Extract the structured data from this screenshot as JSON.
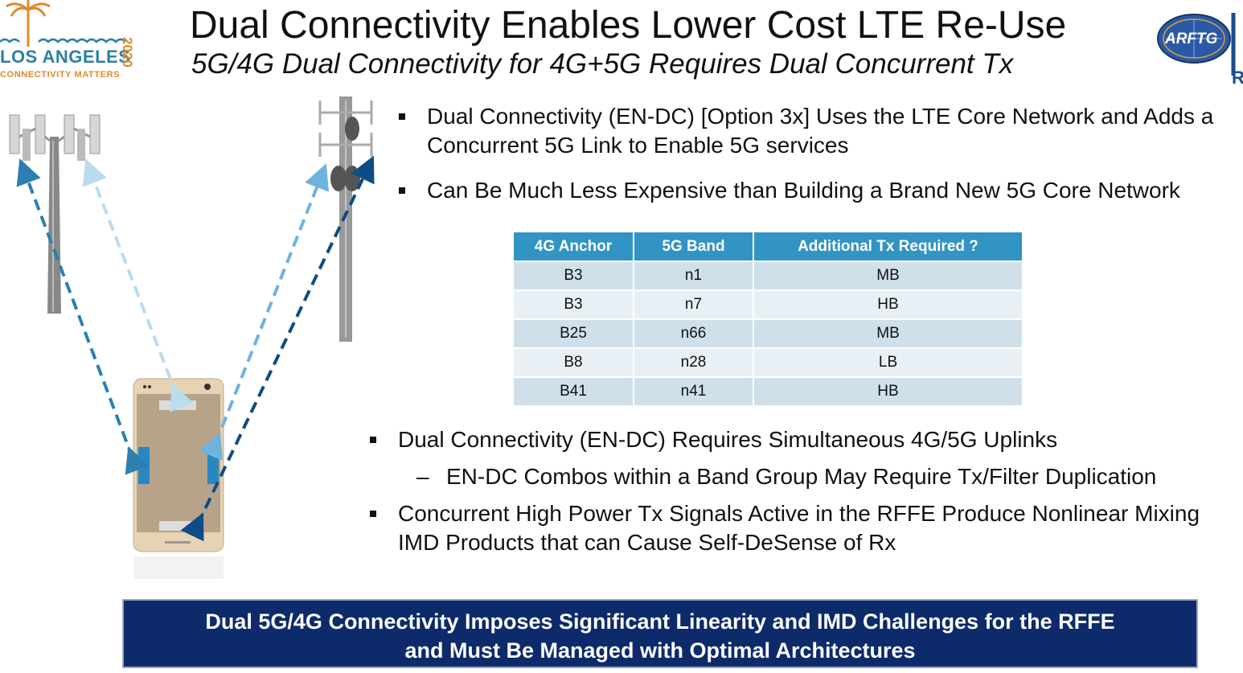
{
  "logo": {
    "name": "LOS ANGELES",
    "tagline": "CONNECTIVITY MATTERS",
    "year": "2020"
  },
  "header": {
    "title": "Dual Connectivity Enables Lower Cost LTE Re-Use",
    "subtitle": "5G/4G Dual Connectivity for 4G+5G Requires Dual Concurrent Tx",
    "org_logo_text": "ARFTG",
    "edge_letter": "R"
  },
  "bullets_top": [
    {
      "text": "Dual Connectivity (EN-DC) [Option 3x] Uses the LTE Core Network and Adds a Concurrent 5G Link to Enable 5G services"
    },
    {
      "text": "Can Be Much Less Expensive than Building a Brand New 5G Core Network"
    }
  ],
  "table": {
    "headers": [
      "4G Anchor",
      "5G Band",
      "Additional Tx Required ?"
    ],
    "rows": [
      [
        "B3",
        "n1",
        "MB"
      ],
      [
        "B3",
        "n7",
        "HB"
      ],
      [
        "B25",
        "n66",
        "MB"
      ],
      [
        "B8",
        "n28",
        "LB"
      ],
      [
        "B41",
        "n41",
        "HB"
      ]
    ]
  },
  "bullets_bottom": [
    {
      "text": "Dual Connectivity (EN-DC) Requires Simultaneous 4G/5G Uplinks"
    },
    {
      "sub_marker": "–",
      "text": "EN-DC Combos within a Band Group May Require Tx/Filter Duplication"
    },
    {
      "text": "Concurrent High Power Tx Signals Active in the RFFE Produce Nonlinear Mixing IMD Products that can Cause Self-DeSense of Rx"
    }
  ],
  "banner": {
    "line1": "Dual 5G/4G Connectivity Imposes Significant Linearity and IMD Challenges for the RFFE",
    "line2": "and Must Be Managed with Optimal Architectures"
  },
  "colors": {
    "header_blue": "#3294c3",
    "row_dark": "#cfe0ea",
    "row_light": "#e8f0f5",
    "banner_navy": "#0d2a6b",
    "logo_blue": "#2e7fa3",
    "logo_orange": "#e08a2a"
  }
}
